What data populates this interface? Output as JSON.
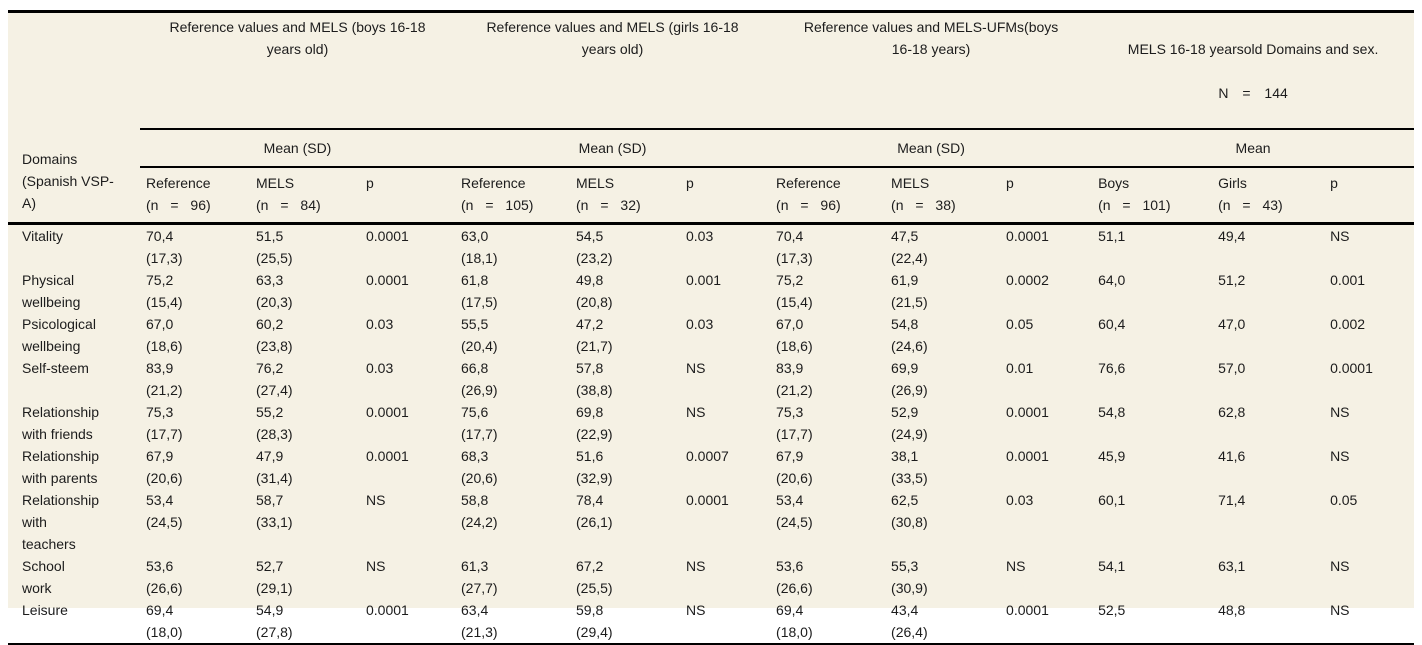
{
  "colors": {
    "panel_background": "#f5f1e4",
    "rule": "#000000",
    "text": "#1c1c1c"
  },
  "table": {
    "domains_header": "Domains\n(Spanish VSP-\nA)",
    "groups": [
      {
        "title": "Reference values and MELS (boys 16-18\nyears old)",
        "subtitle": "Mean (SD)",
        "columns": [
          {
            "label": "Reference",
            "n": "(n = 96)"
          },
          {
            "label": "MELS",
            "n": "(n = 84)"
          },
          {
            "label": "p"
          }
        ]
      },
      {
        "title": "Reference values and MELS (girls 16-18\nyears old)",
        "subtitle": "Mean (SD)",
        "columns": [
          {
            "label": "Reference",
            "n": "(n = 105)"
          },
          {
            "label": "MELS",
            "n": "(n = 32)"
          },
          {
            "label": "p"
          }
        ]
      },
      {
        "title": "Reference values and MELS-UFMs(boys\n16-18 years)",
        "subtitle": "Mean (SD)",
        "columns": [
          {
            "label": "Reference",
            "n": "(n = 96)"
          },
          {
            "label": "MELS",
            "n": "(n = 38)"
          },
          {
            "label": "p"
          }
        ]
      },
      {
        "title": "MELS 16-18 yearsold Domains and sex.",
        "n_total": "N = 144",
        "subtitle": "Mean",
        "columns": [
          {
            "label": "Boys",
            "n": "(n = 101)"
          },
          {
            "label": "Girls",
            "n": "(n = 43)"
          },
          {
            "label": "p"
          }
        ]
      }
    ],
    "rows": [
      {
        "domain": "Vitality",
        "values": [
          [
            "70,4",
            "(17,3)"
          ],
          [
            "51,5",
            "(25,5)"
          ],
          [
            "0.0001"
          ],
          [
            "63,0",
            "(18,1)"
          ],
          [
            "54,5",
            "(23,2)"
          ],
          [
            "0.03"
          ],
          [
            "70,4",
            "(17,3)"
          ],
          [
            "47,5",
            "(22,4)"
          ],
          [
            "0.0001"
          ],
          [
            "51,1"
          ],
          [
            "49,4"
          ],
          [
            "NS"
          ]
        ]
      },
      {
        "domain": "Physical\nwellbeing",
        "values": [
          [
            "75,2",
            "(15,4)"
          ],
          [
            "63,3",
            "(20,3)"
          ],
          [
            "0.0001"
          ],
          [
            "61,8",
            "(17,5)"
          ],
          [
            "49,8",
            "(20,8)"
          ],
          [
            "0.001"
          ],
          [
            "75,2",
            "(15,4)"
          ],
          [
            "61,9",
            "(21,5)"
          ],
          [
            "0.0002"
          ],
          [
            "64,0"
          ],
          [
            "51,2"
          ],
          [
            "0.001"
          ]
        ]
      },
      {
        "domain": "Psicological\nwellbeing",
        "values": [
          [
            "67,0",
            "(18,6)"
          ],
          [
            "60,2",
            "(23,8)"
          ],
          [
            "0.03"
          ],
          [
            "55,5",
            "(20,4)"
          ],
          [
            "47,2",
            "(21,7)"
          ],
          [
            "0.03"
          ],
          [
            "67,0",
            "(18,6)"
          ],
          [
            "54,8",
            "(24,6)"
          ],
          [
            "0.05"
          ],
          [
            "60,4"
          ],
          [
            "47,0"
          ],
          [
            "0.002"
          ]
        ]
      },
      {
        "domain": "Self-steem",
        "values": [
          [
            "83,9",
            "(21,2)"
          ],
          [
            "76,2",
            "(27,4)"
          ],
          [
            "0.03"
          ],
          [
            "66,8",
            "(26,9)"
          ],
          [
            "57,8",
            "(38,8)"
          ],
          [
            "NS"
          ],
          [
            "83,9",
            "(21,2)"
          ],
          [
            "69,9",
            "(26,9)"
          ],
          [
            "0.01"
          ],
          [
            "76,6"
          ],
          [
            "57,0"
          ],
          [
            "0.0001"
          ]
        ]
      },
      {
        "domain": "Relationship\nwith friends",
        "values": [
          [
            "75,3",
            "(17,7)"
          ],
          [
            "55,2",
            "(28,3)"
          ],
          [
            "0.0001"
          ],
          [
            "75,6",
            "(17,7)"
          ],
          [
            "69,8",
            "(22,9)"
          ],
          [
            "NS"
          ],
          [
            "75,3",
            "(17,7)"
          ],
          [
            "52,9",
            "(24,9)"
          ],
          [
            "0.0001"
          ],
          [
            "54,8"
          ],
          [
            "62,8"
          ],
          [
            "NS"
          ]
        ]
      },
      {
        "domain": "Relationship\nwith parents",
        "values": [
          [
            "67,9",
            "(20,6)"
          ],
          [
            "47,9",
            "(31,4)"
          ],
          [
            "0.0001"
          ],
          [
            "68,3",
            "(20,6)"
          ],
          [
            "51,6",
            "(32,9)"
          ],
          [
            "0.0007"
          ],
          [
            "67,9",
            "(20,6)"
          ],
          [
            "38,1",
            "(33,5)"
          ],
          [
            "0.0001"
          ],
          [
            "45,9"
          ],
          [
            "41,6"
          ],
          [
            "NS"
          ]
        ]
      },
      {
        "domain": "Relationship\nwith\nteachers",
        "values": [
          [
            "53,4",
            "(24,5)"
          ],
          [
            "58,7",
            "(33,1)"
          ],
          [
            "NS"
          ],
          [
            "58,8",
            "(24,2)"
          ],
          [
            "78,4",
            "(26,1)"
          ],
          [
            "0.0001"
          ],
          [
            "53,4",
            "(24,5)"
          ],
          [
            "62,5",
            "(30,8)"
          ],
          [
            "0.03"
          ],
          [
            "60,1"
          ],
          [
            "71,4"
          ],
          [
            "0.05"
          ]
        ]
      },
      {
        "domain": "School\nwork",
        "values": [
          [
            "53,6",
            "(26,6)"
          ],
          [
            "52,7",
            "(29,1)"
          ],
          [
            "NS"
          ],
          [
            "61,3",
            "(27,7)"
          ],
          [
            "67,2",
            "(25,5)"
          ],
          [
            "NS"
          ],
          [
            "53,6",
            "(26,6)"
          ],
          [
            "55,3",
            "(30,9)"
          ],
          [
            "NS"
          ],
          [
            "54,1"
          ],
          [
            "63,1"
          ],
          [
            "NS"
          ]
        ]
      },
      {
        "domain": "Leisure",
        "values": [
          [
            "69,4",
            "(18,0)"
          ],
          [
            "54,9",
            "(27,8)"
          ],
          [
            "0.0001"
          ],
          [
            "63,4",
            "(21,3)"
          ],
          [
            "59,8",
            "(29,4)"
          ],
          [
            "NS"
          ],
          [
            "69,4",
            "(18,0)"
          ],
          [
            "43,4",
            "(26,4)"
          ],
          [
            "0.0001"
          ],
          [
            "52,5"
          ],
          [
            "48,8"
          ],
          [
            "NS"
          ]
        ]
      }
    ]
  }
}
